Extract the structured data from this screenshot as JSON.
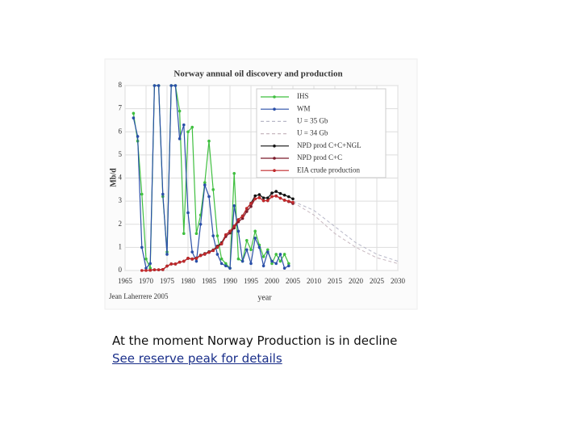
{
  "chart_data": {
    "type": "line",
    "title": "Norway annual oil discovery and production",
    "ylabel": "Mb/d",
    "xlabel": "year",
    "credit": "Jean Laherrere 2005",
    "xlim": [
      1965,
      2030
    ],
    "xticks": [
      1965,
      1970,
      1975,
      1980,
      1985,
      1990,
      1995,
      2000,
      2005,
      2010,
      2015,
      2020,
      2025,
      2030
    ],
    "ylim": [
      0,
      8
    ],
    "yticks": [
      0,
      1,
      2,
      3,
      4,
      5,
      6,
      7,
      8
    ],
    "grid": true,
    "series": [
      {
        "name": "IHS",
        "color": "#3fbf3f",
        "dash": "solid",
        "marker": true,
        "x": [
          1967,
          1968,
          1969,
          1970,
          1971,
          1972,
          1973,
          1974,
          1975,
          1976,
          1977,
          1978,
          1979,
          1980,
          1981,
          1982,
          1983,
          1984,
          1985,
          1986,
          1987,
          1988,
          1989,
          1990,
          1991,
          1992,
          1993,
          1994,
          1995,
          1996,
          1997,
          1998,
          1999,
          2000,
          2001,
          2002,
          2003,
          2004
        ],
        "values": [
          6.8,
          5.6,
          3.3,
          0.5,
          0.1,
          8,
          8,
          3.2,
          0.8,
          8,
          8,
          6.9,
          1.6,
          6,
          6.2,
          1.6,
          2.4,
          3.8,
          5.6,
          3.5,
          1.5,
          0.5,
          0.3,
          0.1,
          4.2,
          0.5,
          0.4,
          1.3,
          0.9,
          1.7,
          1.1,
          0.6,
          0.9,
          0.3,
          0.7,
          0.4,
          0.7,
          0.3
        ]
      },
      {
        "name": "WM",
        "color": "#2a4fa8",
        "dash": "solid",
        "marker": true,
        "x": [
          1967,
          1968,
          1969,
          1970,
          1971,
          1972,
          1973,
          1974,
          1975,
          1976,
          1977,
          1978,
          1979,
          1980,
          1981,
          1982,
          1983,
          1984,
          1985,
          1986,
          1987,
          1988,
          1989,
          1990,
          1991,
          1992,
          1993,
          1994,
          1995,
          1996,
          1997,
          1998,
          1999,
          2000,
          2001,
          2002,
          2003,
          2004
        ],
        "values": [
          6.6,
          5.8,
          1,
          0.1,
          0.3,
          8,
          8,
          3.3,
          0.7,
          8,
          8,
          5.7,
          6.3,
          2.5,
          0.8,
          0.4,
          2,
          3.7,
          3.2,
          1.5,
          0.7,
          0.3,
          0.2,
          0.1,
          2.8,
          1.7,
          0.4,
          0.9,
          0.3,
          1.4,
          1,
          0.2,
          0.8,
          0.4,
          0.3,
          0.7,
          0.1,
          0.2
        ]
      },
      {
        "name": "U = 35 Gb",
        "color": "#b8b8c8",
        "dash": "dashed",
        "marker": false,
        "x": [
          2005,
          2010,
          2015,
          2020,
          2025,
          2030
        ],
        "values": [
          3.0,
          2.6,
          1.9,
          1.2,
          0.7,
          0.4
        ]
      },
      {
        "name": "U = 34 Gb",
        "color": "#c8b8c0",
        "dash": "dashed",
        "marker": false,
        "x": [
          2005,
          2010,
          2015,
          2020,
          2025,
          2030
        ],
        "values": [
          2.95,
          2.4,
          1.6,
          1.0,
          0.55,
          0.3
        ]
      },
      {
        "name": "NPD prod C+C+NGL",
        "color": "#111111",
        "dash": "solid",
        "marker": true,
        "x": [
          1971,
          1972,
          1973,
          1974,
          1975,
          1976,
          1977,
          1978,
          1979,
          1980,
          1981,
          1982,
          1983,
          1984,
          1985,
          1986,
          1987,
          1988,
          1989,
          1990,
          1991,
          1992,
          1993,
          1994,
          1995,
          1996,
          1997,
          1998,
          1999,
          2000,
          2001,
          2002,
          2003,
          2004,
          2005
        ],
        "values": [
          0.01,
          0.03,
          0.03,
          0.04,
          0.19,
          0.28,
          0.28,
          0.36,
          0.4,
          0.53,
          0.5,
          0.54,
          0.66,
          0.73,
          0.81,
          0.89,
          1.05,
          1.2,
          1.54,
          1.7,
          1.92,
          2.2,
          2.36,
          2.68,
          2.91,
          3.23,
          3.28,
          3.14,
          3.14,
          3.35,
          3.42,
          3.33,
          3.26,
          3.19,
          3.1
        ]
      },
      {
        "name": "NPD prod C+C",
        "color": "#7a1a2a",
        "dash": "solid",
        "marker": true,
        "x": [
          1971,
          1972,
          1973,
          1974,
          1975,
          1976,
          1977,
          1978,
          1979,
          1980,
          1981,
          1982,
          1983,
          1984,
          1985,
          1986,
          1987,
          1988,
          1989,
          1990,
          1991,
          1992,
          1993,
          1994,
          1995,
          1996,
          1997,
          1998,
          1999,
          2000,
          2001,
          2002,
          2003,
          2004,
          2005
        ],
        "values": [
          0.01,
          0.03,
          0.03,
          0.04,
          0.19,
          0.28,
          0.28,
          0.36,
          0.4,
          0.52,
          0.49,
          0.52,
          0.64,
          0.7,
          0.78,
          0.86,
          1.0,
          1.15,
          1.47,
          1.62,
          1.84,
          2.11,
          2.25,
          2.55,
          2.77,
          3.1,
          3.15,
          3.02,
          3.02,
          3.2,
          3.23,
          3.13,
          3.04,
          2.98,
          2.9
        ]
      },
      {
        "name": "EIA crude production",
        "color": "#c0282a",
        "dash": "solid",
        "marker": true,
        "x": [
          1969,
          1970,
          1971,
          1972,
          1973,
          1974,
          1975,
          1976,
          1977,
          1978,
          1979,
          1980,
          1981,
          1982,
          1983,
          1984,
          1985,
          1986,
          1987,
          1988,
          1989,
          1990,
          1991,
          1992,
          1993,
          1994,
          1995,
          1996,
          1997,
          1998,
          1999,
          2000,
          2001,
          2002,
          2003,
          2004,
          2005
        ],
        "values": [
          0,
          0,
          0.01,
          0.03,
          0.03,
          0.04,
          0.19,
          0.28,
          0.28,
          0.36,
          0.4,
          0.53,
          0.5,
          0.53,
          0.65,
          0.72,
          0.79,
          0.87,
          1.02,
          1.16,
          1.55,
          1.7,
          1.92,
          2.2,
          2.35,
          2.69,
          2.9,
          3.1,
          3.15,
          3.02,
          3.03,
          3.2,
          3.22,
          3.13,
          3.04,
          3.0,
          2.95
        ]
      }
    ]
  },
  "caption": "At the moment Norway Production is in decline",
  "link": "See reserve peak for details"
}
